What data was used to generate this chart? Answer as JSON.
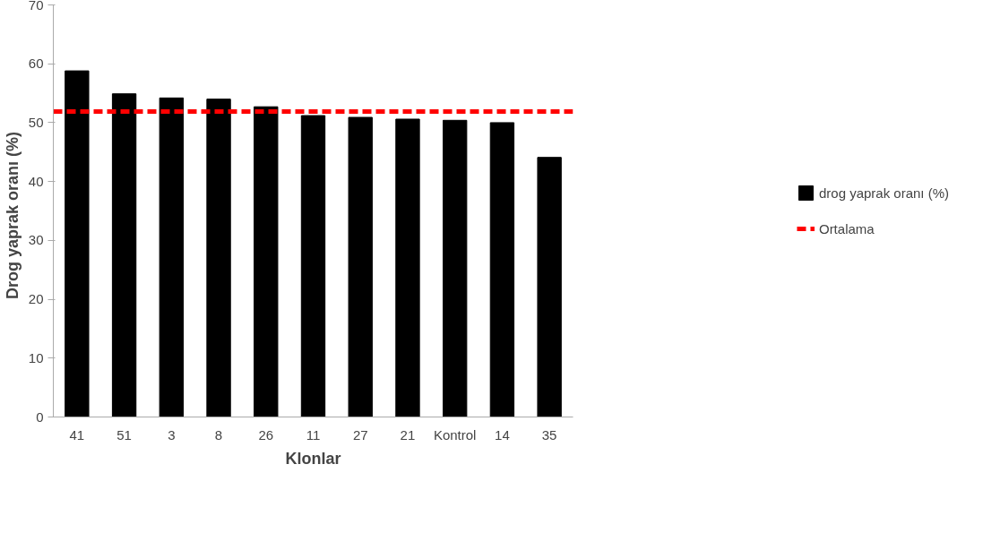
{
  "chart_data": {
    "type": "bar",
    "xlabel": "Klonlar",
    "ylabel": "Drog  yaprak  oranı (%)",
    "categories": [
      "41",
      "51",
      "3",
      "8",
      "26",
      "11",
      "27",
      "21",
      "Kontrol",
      "14",
      "35"
    ],
    "series": [
      {
        "name": "drog yaprak oranı (%)",
        "color": "#000000",
        "values": [
          58.8,
          54.9,
          54.2,
          54.0,
          52.7,
          51.2,
          50.9,
          50.6,
          50.4,
          50.0,
          44.1
        ]
      }
    ],
    "ylim": [
      0,
      70
    ],
    "yticks": [
      0,
      10,
      20,
      30,
      40,
      50,
      60,
      70
    ],
    "ref_lines": [
      {
        "axis": "y",
        "value": 51.9,
        "label": "Ortalama",
        "color": "#ff0000",
        "line_style": "dashed"
      }
    ],
    "grid": false,
    "legend": "right"
  }
}
